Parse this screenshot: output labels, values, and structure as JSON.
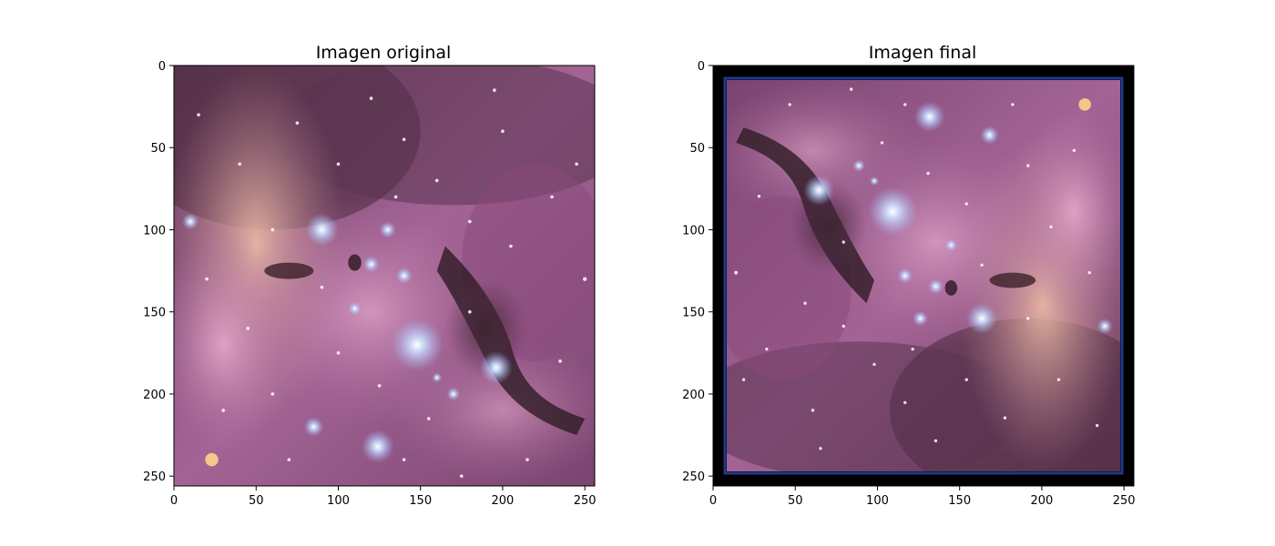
{
  "chart_data": [
    {
      "type": "image",
      "title": "Imagen original",
      "xlim": [
        0,
        256
      ],
      "ylim": [
        256,
        0
      ],
      "xticks": [
        0,
        50,
        100,
        150,
        200,
        250
      ],
      "yticks": [
        0,
        50,
        100,
        150,
        200,
        250
      ],
      "grid": false,
      "image_content": "purple-pink nebula star field, bright star cluster lower center, dark dust lane lower right, pale orange cloud upper left"
    },
    {
      "type": "image",
      "title": "Imagen final",
      "xlim": [
        0,
        256
      ],
      "ylim": [
        256,
        0
      ],
      "xticks": [
        0,
        50,
        100,
        150,
        200,
        250
      ],
      "yticks": [
        0,
        50,
        100,
        150,
        200,
        250
      ],
      "grid": false,
      "image_content": "same nebula rotated 180 degrees, framed by a black border with a thin blue edge",
      "border_color": "#000000",
      "border_edge_color": "#1f3a8a"
    }
  ]
}
